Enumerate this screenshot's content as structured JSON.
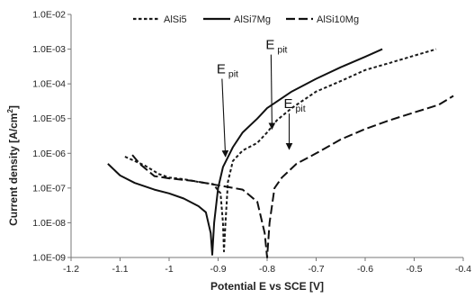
{
  "chart_data": {
    "type": "line",
    "xlabel": "Potential E vs SCE [V]",
    "ylabel": "Current density [A/cm",
    "ylabel_sup": "2",
    "ylabel_end": "]",
    "xlim": [
      -1.2,
      -0.4
    ],
    "ylim": [
      1e-09,
      0.01
    ],
    "y_scale": "log",
    "grid": false,
    "legend_position": "top",
    "x_ticks": [
      {
        "value": -1.2,
        "label": "-1.2"
      },
      {
        "value": -1.1,
        "label": "-1.1"
      },
      {
        "value": -1.0,
        "label": "-1"
      },
      {
        "value": -0.9,
        "label": "-0.9"
      },
      {
        "value": -0.8,
        "label": "-0.8"
      },
      {
        "value": -0.7,
        "label": "-0.7"
      },
      {
        "value": -0.6,
        "label": "-0.6"
      },
      {
        "value": -0.5,
        "label": "-0.5"
      },
      {
        "value": -0.4,
        "label": "-0.4"
      }
    ],
    "y_ticks": [
      {
        "value": 1e-09,
        "label": "1.0E-09"
      },
      {
        "value": 1e-08,
        "label": "1.0E-08"
      },
      {
        "value": 1e-07,
        "label": "1.0E-07"
      },
      {
        "value": 1e-06,
        "label": "1.0E-06"
      },
      {
        "value": 1e-05,
        "label": "1.0E-05"
      },
      {
        "value": 0.0001,
        "label": "1.0E-04"
      },
      {
        "value": 0.001,
        "label": "1.0E-03"
      },
      {
        "value": 0.01,
        "label": "1.0E-02"
      }
    ],
    "series": [
      {
        "name": "AlSi5",
        "color": "#1a1a1a",
        "dash": "short-dash",
        "points": [
          [
            -1.09,
            8e-07
          ],
          [
            -1.05,
            4.5e-07
          ],
          [
            -1.02,
            2.5e-07
          ],
          [
            -1.0,
            2e-07
          ],
          [
            -0.97,
            1.8e-07
          ],
          [
            -0.94,
            1.5e-07
          ],
          [
            -0.91,
            1.3e-07
          ],
          [
            -0.895,
            7e-08
          ],
          [
            -0.89,
            1e-08
          ],
          [
            -0.888,
            1.5e-09
          ],
          [
            -0.885,
            1e-08
          ],
          [
            -0.88,
            1.5e-07
          ],
          [
            -0.87,
            6e-07
          ],
          [
            -0.85,
            1.2e-06
          ],
          [
            -0.82,
            2e-06
          ],
          [
            -0.8,
            4e-06
          ],
          [
            -0.78,
            9e-06
          ],
          [
            -0.75,
            2e-05
          ],
          [
            -0.7,
            6e-05
          ],
          [
            -0.65,
            0.00012
          ],
          [
            -0.6,
            0.00025
          ],
          [
            -0.55,
            0.0004
          ],
          [
            -0.5,
            0.00065
          ],
          [
            -0.455,
            0.001
          ]
        ]
      },
      {
        "name": "AlSi7Mg",
        "color": "#111111",
        "dash": "solid",
        "points": [
          [
            -1.125,
            5e-07
          ],
          [
            -1.1,
            2.3e-07
          ],
          [
            -1.07,
            1.4e-07
          ],
          [
            -1.03,
            9e-08
          ],
          [
            -1.0,
            7e-08
          ],
          [
            -0.97,
            5e-08
          ],
          [
            -0.94,
            3e-08
          ],
          [
            -0.925,
            2e-08
          ],
          [
            -0.915,
            5e-09
          ],
          [
            -0.912,
            1.2e-09
          ],
          [
            -0.908,
            1e-08
          ],
          [
            -0.9,
            1e-07
          ],
          [
            -0.89,
            4e-07
          ],
          [
            -0.87,
            1.5e-06
          ],
          [
            -0.85,
            4e-06
          ],
          [
            -0.82,
            1e-05
          ],
          [
            -0.8,
            2e-05
          ],
          [
            -0.75,
            6e-05
          ],
          [
            -0.7,
            0.00014
          ],
          [
            -0.65,
            0.0003
          ],
          [
            -0.6,
            0.0006
          ],
          [
            -0.565,
            0.001
          ]
        ]
      },
      {
        "name": "AlSi10Mg",
        "color": "#111111",
        "dash": "long-dash",
        "points": [
          [
            -1.075,
            9e-07
          ],
          [
            -1.06,
            5e-07
          ],
          [
            -1.03,
            2.2e-07
          ],
          [
            -1.0,
            1.9e-07
          ],
          [
            -0.95,
            1.6e-07
          ],
          [
            -0.9,
            1.2e-07
          ],
          [
            -0.85,
            9e-08
          ],
          [
            -0.82,
            4e-08
          ],
          [
            -0.805,
            5e-09
          ],
          [
            -0.8,
            1e-09
          ],
          [
            -0.795,
            1e-08
          ],
          [
            -0.785,
            1e-07
          ],
          [
            -0.77,
            2e-07
          ],
          [
            -0.74,
            5e-07
          ],
          [
            -0.7,
            1e-06
          ],
          [
            -0.65,
            2.5e-06
          ],
          [
            -0.6,
            5e-06
          ],
          [
            -0.55,
            9e-06
          ],
          [
            -0.5,
            1.5e-05
          ],
          [
            -0.45,
            2.5e-05
          ],
          [
            -0.42,
            4.5e-05
          ]
        ]
      }
    ],
    "annotations": [
      {
        "text": "E",
        "sub": "pit",
        "x": -0.892,
        "y": 0.0002,
        "arrow_to": [
          -0.885,
          8e-07
        ]
      },
      {
        "text": "E",
        "sub": "pit",
        "x": -0.792,
        "y": 0.001,
        "arrow_to": [
          -0.79,
          5e-06
        ]
      },
      {
        "text": "E",
        "sub": "pit",
        "x": -0.755,
        "y": 2e-05,
        "arrow_to": [
          -0.755,
          1.3e-06
        ]
      }
    ]
  }
}
